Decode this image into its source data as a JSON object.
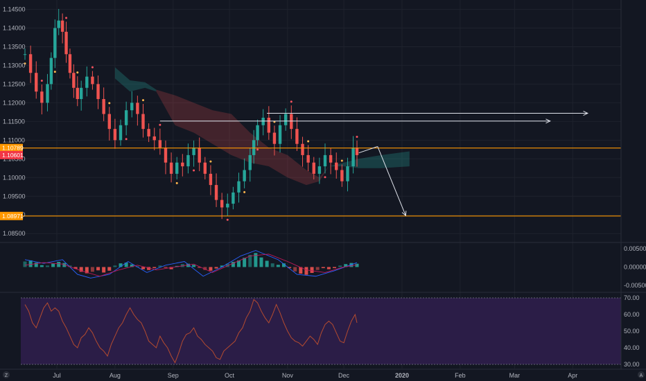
{
  "chart_data": [
    {
      "type": "candlestick",
      "price_axis": {
        "ylim": [
          1.083,
          1.1475
        ],
        "ticks": [
          "1.14500",
          "1.14000",
          "1.13500",
          "1.13000",
          "1.12500",
          "1.12000",
          "1.11500",
          "1.11000",
          "1.10500",
          "1.10000",
          "1.09500",
          "1.09000",
          "1.08500"
        ],
        "tick_values": [
          1.145,
          1.14,
          1.135,
          1.13,
          1.125,
          1.12,
          1.115,
          1.11,
          1.105,
          1.1,
          1.095,
          1.09,
          1.085
        ]
      },
      "time_axis": {
        "labels": [
          "Jul",
          "Aug",
          "Sep",
          "Oct",
          "Nov",
          "Dec",
          "2020",
          "Feb",
          "Mar",
          "Apr"
        ],
        "label_days": [
          17,
          48,
          79,
          109,
          140,
          170,
          201,
          232,
          261,
          292
        ]
      },
      "price_tags": [
        {
          "label": "1.10789",
          "value": 1.10789,
          "color": "#ff9800"
        },
        {
          "label": "1.10601",
          "value": 1.10601,
          "color": "#f23645"
        },
        {
          "label": "1.08971",
          "value": 1.08971,
          "color": "#ff9800"
        }
      ],
      "horizontal_levels": [
        {
          "value": 1.10789,
          "color": "#ff9800"
        },
        {
          "value": 1.08971,
          "color": "#ff9800"
        }
      ],
      "projection_arrows": [
        {
          "from": [
            129,
            1.1172
          ],
          "to": [
            300,
            1.1172
          ],
          "color": "#e0e3eb"
        },
        {
          "from": [
            72,
            1.1151
          ],
          "to": [
            280,
            1.1151
          ],
          "color": "#e0e3eb"
        },
        {
          "from": [
            178,
            1.1066
          ],
          "to": [
            188,
            1.1083
          ],
          "color": "#e0e3eb"
        },
        {
          "from": [
            188,
            1.1083
          ],
          "to": [
            203,
            1.0898
          ],
          "color": "#e0e3eb"
        }
      ],
      "close_path": [
        [
          0,
          1.133
        ],
        [
          3,
          1.128
        ],
        [
          6,
          1.123
        ],
        [
          9,
          1.12
        ],
        [
          12,
          1.125
        ],
        [
          14,
          1.132
        ],
        [
          16,
          1.14
        ],
        [
          18,
          1.142
        ],
        [
          20,
          1.139
        ],
        [
          22,
          1.133
        ],
        [
          24,
          1.128
        ],
        [
          26,
          1.124
        ],
        [
          28,
          1.121
        ],
        [
          30,
          1.124
        ],
        [
          33,
          1.127
        ],
        [
          36,
          1.125
        ],
        [
          39,
          1.121
        ],
        [
          42,
          1.117
        ],
        [
          45,
          1.113
        ],
        [
          48,
          1.11
        ],
        [
          51,
          1.114
        ],
        [
          54,
          1.118
        ],
        [
          57,
          1.12
        ],
        [
          60,
          1.117
        ],
        [
          63,
          1.113
        ],
        [
          66,
          1.111
        ],
        [
          69,
          1.11
        ],
        [
          72,
          1.108
        ],
        [
          75,
          1.104
        ],
        [
          78,
          1.101
        ],
        [
          81,
          1.104
        ],
        [
          84,
          1.103
        ],
        [
          87,
          1.106
        ],
        [
          90,
          1.108
        ],
        [
          93,
          1.104
        ],
        [
          96,
          1.101
        ],
        [
          99,
          1.098
        ],
        [
          102,
          1.094
        ],
        [
          105,
          1.092
        ],
        [
          108,
          1.093
        ],
        [
          111,
          1.096
        ],
        [
          114,
          1.099
        ],
        [
          117,
          1.102
        ],
        [
          120,
          1.106
        ],
        [
          122,
          1.11
        ],
        [
          124,
          1.114
        ],
        [
          127,
          1.116
        ],
        [
          130,
          1.112
        ],
        [
          133,
          1.109
        ],
        [
          136,
          1.114
        ],
        [
          139,
          1.117
        ],
        [
          142,
          1.113
        ],
        [
          145,
          1.109
        ],
        [
          148,
          1.106
        ],
        [
          151,
          1.104
        ],
        [
          154,
          1.101
        ],
        [
          157,
          1.103
        ],
        [
          160,
          1.106
        ],
        [
          163,
          1.104
        ],
        [
          166,
          1.102
        ],
        [
          169,
          1.099
        ],
        [
          172,
          1.103
        ],
        [
          175,
          1.108
        ],
        [
          177,
          1.106
        ]
      ],
      "cloud_green_a": [
        [
          48,
          1.1295
        ],
        [
          56,
          1.126
        ],
        [
          64,
          1.1255
        ],
        [
          70,
          1.1235
        ]
      ],
      "cloud_green_b": [
        [
          48,
          1.1265
        ],
        [
          56,
          1.123
        ],
        [
          64,
          1.124
        ],
        [
          70,
          1.123
        ]
      ],
      "cloud_red_a": [
        [
          70,
          1.1235
        ],
        [
          80,
          1.122
        ],
        [
          90,
          1.12
        ],
        [
          100,
          1.118
        ],
        [
          110,
          1.117
        ],
        [
          120,
          1.112
        ],
        [
          130,
          1.108
        ],
        [
          140,
          1.106
        ],
        [
          150,
          1.102
        ],
        [
          157,
          1.1
        ],
        [
          162,
          1.103
        ]
      ],
      "cloud_red_b": [
        [
          70,
          1.123
        ],
        [
          80,
          1.114
        ],
        [
          90,
          1.112
        ],
        [
          100,
          1.109
        ],
        [
          110,
          1.106
        ],
        [
          120,
          1.104
        ],
        [
          130,
          1.103
        ],
        [
          140,
          1.1
        ],
        [
          150,
          1.098
        ],
        [
          157,
          1.099
        ],
        [
          162,
          1.103
        ]
      ],
      "cloud_green2_a": [
        [
          162,
          1.103
        ],
        [
          170,
          1.104
        ],
        [
          178,
          1.105
        ],
        [
          190,
          1.106
        ],
        [
          205,
          1.107
        ]
      ],
      "cloud_green2_b": [
        [
          162,
          1.103
        ],
        [
          170,
          1.103
        ],
        [
          178,
          1.1025
        ],
        [
          190,
          1.1025
        ],
        [
          205,
          1.103
        ]
      ]
    },
    {
      "type": "histogram",
      "ylim": [
        -0.0065,
        0.0063
      ],
      "ticks": [
        "0.00500",
        "0.00000",
        "-0.00500"
      ],
      "tick_values": [
        0.005,
        0.0,
        -0.005
      ],
      "hist": [
        [
          0,
          0.0015
        ],
        [
          3,
          0.0018
        ],
        [
          6,
          0.0012
        ],
        [
          9,
          0.0005
        ],
        [
          12,
          0.0004
        ],
        [
          15,
          0.0009
        ],
        [
          18,
          0.0014
        ],
        [
          21,
          0.0011
        ],
        [
          24,
          0.0004
        ],
        [
          27,
          -0.0005
        ],
        [
          30,
          -0.0013
        ],
        [
          33,
          -0.0017
        ],
        [
          36,
          -0.0013
        ],
        [
          39,
          -0.0009
        ],
        [
          42,
          -0.0015
        ],
        [
          45,
          -0.001
        ],
        [
          48,
          0.0004
        ],
        [
          51,
          0.001
        ],
        [
          54,
          0.0012
        ],
        [
          57,
          0.0007
        ],
        [
          60,
          0.0002
        ],
        [
          63,
          -0.0006
        ],
        [
          66,
          -0.0008
        ],
        [
          69,
          -0.0003
        ],
        [
          72,
          0.0004
        ],
        [
          75,
          -0.0002
        ],
        [
          78,
          -0.0006
        ],
        [
          81,
          0.0003
        ],
        [
          84,
          0.0008
        ],
        [
          87,
          0.0009
        ],
        [
          90,
          0.0006
        ],
        [
          93,
          -0.0002
        ],
        [
          96,
          -0.0008
        ],
        [
          99,
          -0.001
        ],
        [
          102,
          -0.0004
        ],
        [
          105,
          0.0004
        ],
        [
          108,
          0.0009
        ],
        [
          111,
          0.0014
        ],
        [
          114,
          0.0018
        ],
        [
          117,
          0.0025
        ],
        [
          120,
          0.0033
        ],
        [
          123,
          0.0038
        ],
        [
          126,
          0.0026
        ],
        [
          129,
          0.0017
        ],
        [
          132,
          0.001
        ],
        [
          135,
          0.0006
        ],
        [
          138,
          0.001
        ],
        [
          141,
          -0.0003
        ],
        [
          144,
          -0.0012
        ],
        [
          147,
          -0.0018
        ],
        [
          150,
          -0.0021
        ],
        [
          153,
          -0.0016
        ],
        [
          156,
          -0.0008
        ],
        [
          159,
          -0.0003
        ],
        [
          162,
          -0.0006
        ],
        [
          165,
          -0.0003
        ],
        [
          168,
          0.0004
        ],
        [
          171,
          0.0008
        ],
        [
          174,
          0.0011
        ],
        [
          177,
          0.0009
        ]
      ],
      "macd_line": [
        [
          0,
          0.002
        ],
        [
          10,
          0.001
        ],
        [
          20,
          0.002
        ],
        [
          28,
          -0.002
        ],
        [
          35,
          -0.003
        ],
        [
          45,
          -0.002
        ],
        [
          55,
          0.0015
        ],
        [
          65,
          -0.0015
        ],
        [
          75,
          0.0005
        ],
        [
          85,
          0.0015
        ],
        [
          95,
          -0.0025
        ],
        [
          105,
          0.0
        ],
        [
          115,
          0.003
        ],
        [
          123,
          0.0045
        ],
        [
          135,
          0.002
        ],
        [
          145,
          -0.002
        ],
        [
          155,
          -0.0025
        ],
        [
          165,
          -0.001
        ],
        [
          177,
          0.0012
        ]
      ],
      "signal_line": [
        [
          0,
          0.0005
        ],
        [
          10,
          0.0012
        ],
        [
          20,
          0.0008
        ],
        [
          30,
          -0.001
        ],
        [
          40,
          -0.0025
        ],
        [
          50,
          -0.0008
        ],
        [
          60,
          0.0005
        ],
        [
          70,
          -0.0008
        ],
        [
          80,
          0.0
        ],
        [
          90,
          0.0008
        ],
        [
          100,
          -0.0015
        ],
        [
          110,
          0.0008
        ],
        [
          120,
          0.003
        ],
        [
          130,
          0.0035
        ],
        [
          140,
          0.0015
        ],
        [
          150,
          -0.0008
        ],
        [
          160,
          -0.0015
        ],
        [
          170,
          0.0
        ],
        [
          177,
          0.0006
        ]
      ]
    },
    {
      "type": "line",
      "ylim": [
        27.5,
        72.5
      ],
      "ticks": [
        "70.00",
        "60.00",
        "50.00",
        "40.00",
        "30.00"
      ],
      "tick_values": [
        70,
        60,
        50,
        40,
        30
      ],
      "band": [
        30,
        70
      ],
      "values": [
        [
          0,
          66
        ],
        [
          2,
          62
        ],
        [
          4,
          55
        ],
        [
          6,
          52
        ],
        [
          8,
          58
        ],
        [
          10,
          64
        ],
        [
          12,
          67
        ],
        [
          14,
          62
        ],
        [
          16,
          64
        ],
        [
          18,
          62
        ],
        [
          20,
          56
        ],
        [
          22,
          52
        ],
        [
          24,
          47
        ],
        [
          26,
          42
        ],
        [
          28,
          40
        ],
        [
          30,
          46
        ],
        [
          32,
          48
        ],
        [
          34,
          52
        ],
        [
          36,
          49
        ],
        [
          38,
          44
        ],
        [
          40,
          40
        ],
        [
          42,
          38
        ],
        [
          44,
          35
        ],
        [
          46,
          42
        ],
        [
          48,
          47
        ],
        [
          50,
          52
        ],
        [
          52,
          55
        ],
        [
          54,
          60
        ],
        [
          56,
          64
        ],
        [
          58,
          60
        ],
        [
          60,
          57
        ],
        [
          62,
          55
        ],
        [
          64,
          50
        ],
        [
          66,
          44
        ],
        [
          68,
          42
        ],
        [
          70,
          40
        ],
        [
          72,
          47
        ],
        [
          74,
          43
        ],
        [
          76,
          40
        ],
        [
          78,
          35
        ],
        [
          80,
          31
        ],
        [
          82,
          37
        ],
        [
          84,
          44
        ],
        [
          86,
          48
        ],
        [
          88,
          49
        ],
        [
          90,
          52
        ],
        [
          92,
          47
        ],
        [
          94,
          45
        ],
        [
          96,
          42
        ],
        [
          98,
          40
        ],
        [
          100,
          38
        ],
        [
          102,
          34
        ],
        [
          104,
          33
        ],
        [
          106,
          38
        ],
        [
          108,
          40
        ],
        [
          110,
          42
        ],
        [
          112,
          44
        ],
        [
          114,
          49
        ],
        [
          116,
          52
        ],
        [
          118,
          58
        ],
        [
          120,
          62
        ],
        [
          122,
          69
        ],
        [
          124,
          67
        ],
        [
          126,
          62
        ],
        [
          128,
          58
        ],
        [
          130,
          55
        ],
        [
          132,
          60
        ],
        [
          134,
          66
        ],
        [
          136,
          61
        ],
        [
          138,
          55
        ],
        [
          140,
          50
        ],
        [
          142,
          46
        ],
        [
          144,
          44
        ],
        [
          146,
          43
        ],
        [
          148,
          41
        ],
        [
          150,
          44
        ],
        [
          152,
          47
        ],
        [
          154,
          45
        ],
        [
          156,
          42
        ],
        [
          158,
          49
        ],
        [
          160,
          54
        ],
        [
          162,
          56
        ],
        [
          164,
          54
        ],
        [
          166,
          49
        ],
        [
          168,
          44
        ],
        [
          170,
          43
        ],
        [
          172,
          50
        ],
        [
          174,
          56
        ],
        [
          176,
          60
        ],
        [
          177,
          55
        ]
      ]
    }
  ],
  "layout": {
    "candle_color_up": "#26a69a",
    "candle_color_down": "#ef5350",
    "macd_hist_up": "#26a69a",
    "macd_hist_down": "#ef5350",
    "rsi_color": "#b54b2f",
    "rsi_band": "#2b1d47"
  },
  "toolbar": {
    "left_icon": "Z",
    "right_icon": "A"
  }
}
